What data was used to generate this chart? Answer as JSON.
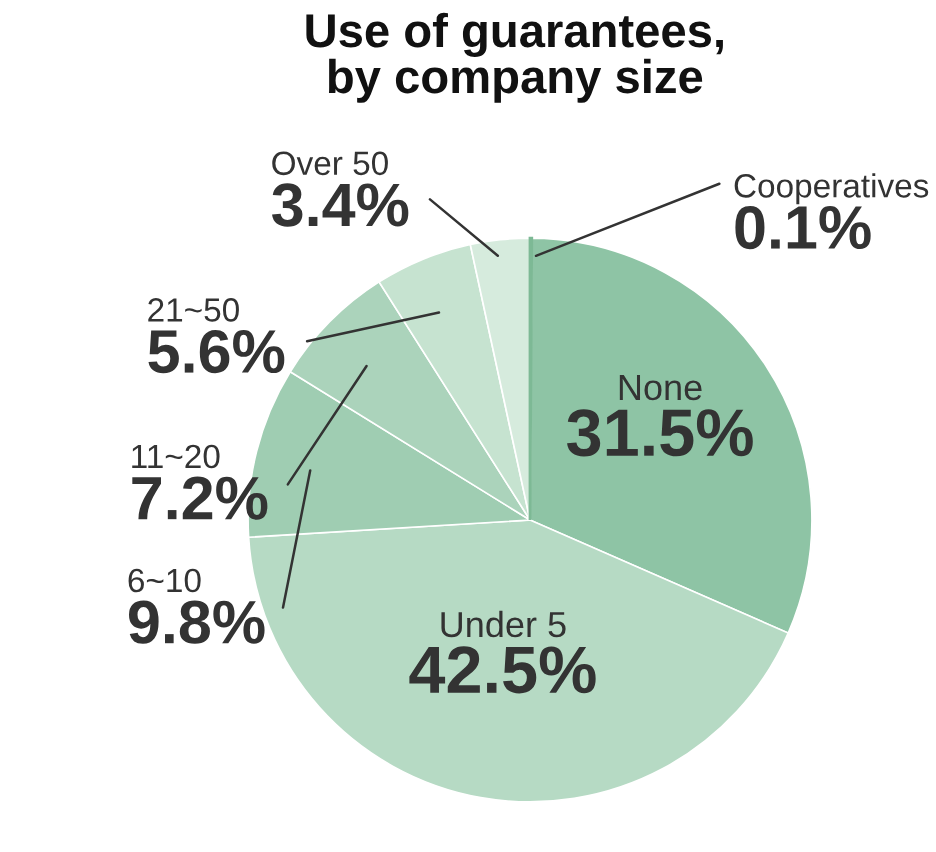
{
  "chart_data": {
    "type": "pie",
    "title": "Use of guarantees,\nby company size",
    "categories": [
      "Cooperatives",
      "None",
      "Under 5",
      "6~10",
      "11~20",
      "21~50",
      "Over 50"
    ],
    "values": [
      0.1,
      31.5,
      42.5,
      9.8,
      7.2,
      5.6,
      3.4
    ],
    "value_labels": [
      "0.1%",
      "31.5%",
      "42.5%",
      "9.8%",
      "7.2%",
      "5.6%",
      "3.4%"
    ],
    "colors": [
      "#7db995",
      "#8ec4a5",
      "#b6dac4",
      "#9fcdb2",
      "#abd3bb",
      "#c6e3d0",
      "#d6ebdd"
    ],
    "legend": false
  }
}
